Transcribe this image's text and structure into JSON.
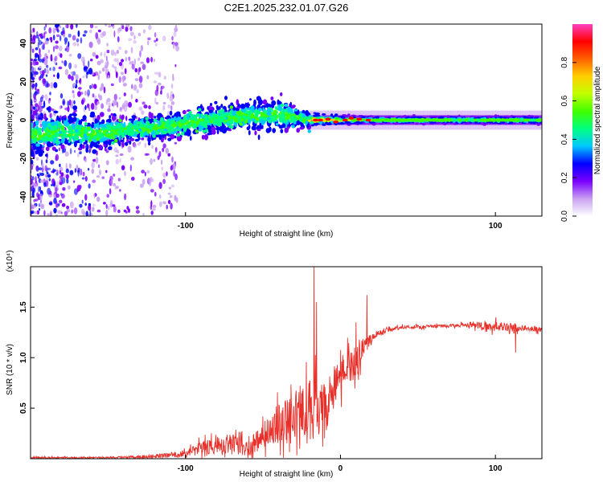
{
  "title": "C2E1.2025.232.01.07.G26",
  "chart_data": [
    {
      "type": "heatmap",
      "name": "spectrogram",
      "xlabel": "Height of straight line (km)",
      "ylabel": "Frequency (Hz)",
      "xlim": [
        -200,
        130
      ],
      "ylim": [
        -50,
        50
      ],
      "xticks": [
        -100,
        100
      ],
      "yticks": [
        -40,
        -20,
        0,
        20,
        40
      ],
      "ridge": {
        "x": [
          -200,
          -180,
          -160,
          -140,
          -120,
          -100,
          -80,
          -60,
          -40,
          -20,
          -10,
          0,
          20,
          60,
          100,
          130
        ],
        "y": [
          -8,
          -6,
          -7,
          -5,
          -4,
          -2,
          1,
          2,
          3,
          0,
          0,
          0,
          0,
          0,
          0,
          0
        ],
        "halfwidth": [
          9,
          9,
          8,
          6,
          6,
          6,
          6,
          7,
          8,
          3,
          2,
          2,
          1.5,
          1.5,
          1.5,
          1.5
        ]
      },
      "colorbar": {
        "label": "Normalized spectral amplitude",
        "range": [
          0,
          1
        ],
        "ticks": [
          "0.0",
          "0.2",
          "0.4",
          "0.6",
          "0.8"
        ],
        "colors": [
          "#ffffff",
          "#c8a0f0",
          "#7a00ff",
          "#0000ff",
          "#00c8ff",
          "#00ff80",
          "#40ff00",
          "#c0ff00",
          "#ffd000",
          "#ff6000",
          "#ff0000",
          "#ff40c0"
        ]
      }
    },
    {
      "type": "line",
      "name": "snr",
      "xlabel": "Height of straight line (km)",
      "ylabel": "SNR (10 * v/v)",
      "scale_label": "(x10⁴)",
      "xlim": [
        -200,
        130
      ],
      "ylim": [
        0,
        1.9
      ],
      "xticks": [
        -100,
        0,
        100
      ],
      "yticks": [
        "0.5",
        "1.0",
        "1.5"
      ],
      "color": "#e8302a",
      "x": [
        -200,
        -150,
        -125,
        -100,
        -90,
        -80,
        -70,
        -60,
        -50,
        -40,
        -30,
        -22,
        -15,
        -10,
        -5,
        0,
        5,
        10,
        15,
        20,
        30,
        40,
        60,
        80,
        100,
        110,
        120,
        130
      ],
      "mean": [
        0.01,
        0.01,
        0.02,
        0.05,
        0.1,
        0.13,
        0.15,
        0.1,
        0.22,
        0.35,
        0.4,
        0.45,
        0.5,
        0.55,
        0.7,
        0.85,
        0.9,
        0.95,
        1.1,
        1.2,
        1.27,
        1.3,
        1.31,
        1.32,
        1.31,
        1.3,
        1.29,
        1.28
      ],
      "noise": [
        0.01,
        0.01,
        0.02,
        0.04,
        0.08,
        0.12,
        0.12,
        0.1,
        0.15,
        0.25,
        0.35,
        0.4,
        0.35,
        0.3,
        0.28,
        0.25,
        0.2,
        0.2,
        0.12,
        0.05,
        0.03,
        0.02,
        0.02,
        0.02,
        0.06,
        0.05,
        0.03,
        0.03
      ],
      "spikes": [
        {
          "x": -17,
          "y": 1.9
        },
        {
          "x": -15.5,
          "y": 1.55
        },
        {
          "x": 17,
          "y": 1.62
        },
        {
          "x": 10,
          "y": 1.35
        },
        {
          "x": 113,
          "y": 1.05
        }
      ]
    }
  ]
}
